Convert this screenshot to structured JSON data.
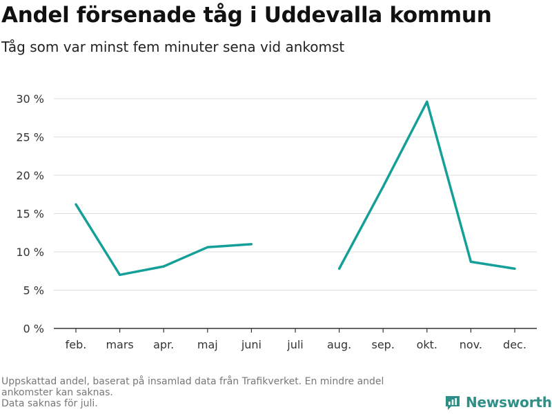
{
  "title": "Andel försenade tåg i Uddevalla kommun",
  "subtitle": "Tåg som var minst fem minuter sena vid ankomst",
  "notes": [
    "Uppskattad andel, baserat på insamlad data från Trafikverket. En mindre andel ankomster kan saknas.",
    "Data saknas för juli."
  ],
  "logo": {
    "text": "Newsworthy",
    "icon": "newsworthy-logo-icon"
  },
  "colors": {
    "line": "#14a098",
    "grid": "#dddddd",
    "axis": "#333333",
    "logo": "#2e8f86"
  },
  "chart_data": {
    "type": "line",
    "title": "Andel försenade tåg i Uddevalla kommun",
    "subtitle": "Tåg som var minst fem minuter sena vid ankomst",
    "xlabel": "",
    "ylabel": "",
    "categories": [
      "feb.",
      "mars",
      "apr.",
      "maj",
      "juni",
      "juli",
      "aug.",
      "sep.",
      "okt.",
      "nov.",
      "dec."
    ],
    "series": [
      {
        "values": [
          16.2,
          7.0,
          8.1,
          10.6,
          11.0,
          null,
          7.8,
          18.5,
          29.6,
          8.7,
          7.8
        ]
      }
    ],
    "ylim": [
      0,
      30
    ],
    "yticks": [
      0,
      5,
      10,
      15,
      20,
      25,
      30
    ],
    "ytick_labels": [
      "0 %",
      "5 %",
      "10 %",
      "15 %",
      "20 %",
      "25 %",
      "30 %"
    ],
    "grid": true,
    "legend": "none"
  }
}
